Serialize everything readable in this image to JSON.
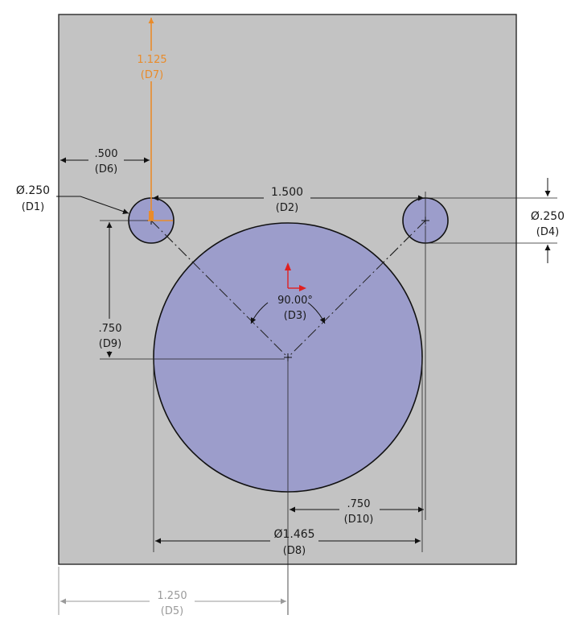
{
  "colors": {
    "plate": "#c3c3c3",
    "plate_border": "#2a2a2a",
    "hole_fill": "#9c9dcb",
    "dimension": "#1a1a1a",
    "driven_dimension": "#9a9a9a",
    "selected_dimension": "#e98b2a",
    "origin_x": "#e02020",
    "origin_y": "#e02020"
  },
  "dimensions": {
    "d1": {
      "value": "Ø.250",
      "name": "(D1)"
    },
    "d2": {
      "value": "1.500",
      "name": "(D2)"
    },
    "d3": {
      "value": "90.00°",
      "name": "(D3)"
    },
    "d4": {
      "value": "Ø.250",
      "name": "(D4)"
    },
    "d5": {
      "value": "1.250",
      "name": "(D5)"
    },
    "d6": {
      "value": ".500",
      "name": "(D6)"
    },
    "d7": {
      "value": "1.125",
      "name": "(D7)"
    },
    "d8": {
      "value": "Ø1.465",
      "name": "(D8)"
    },
    "d9": {
      "value": ".750",
      "name": "(D9)"
    },
    "d10": {
      "value": ".750",
      "name": "(D10)"
    }
  },
  "icons": {
    "origin": "origin-icon"
  }
}
